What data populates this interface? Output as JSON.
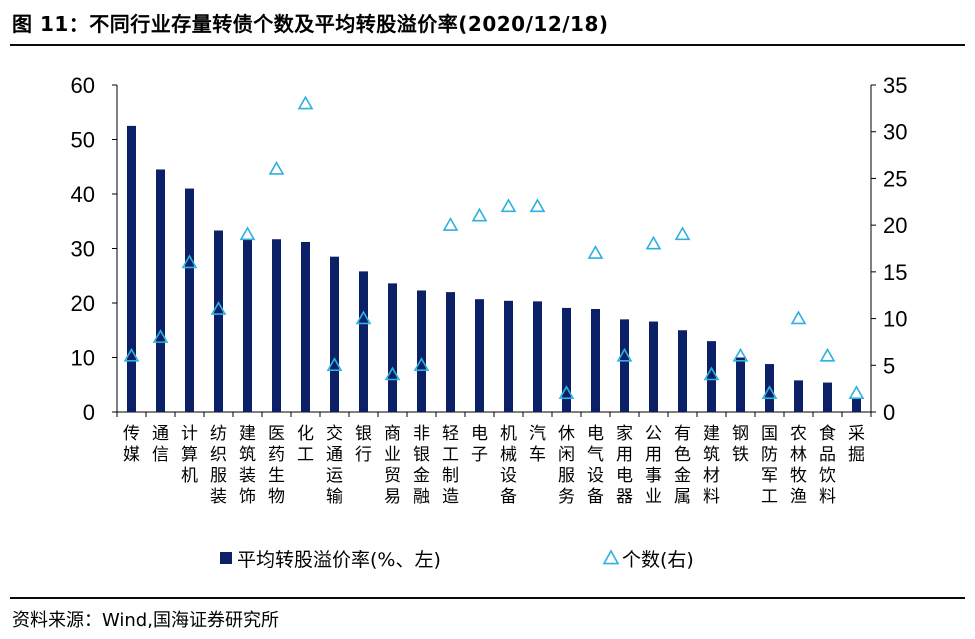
{
  "header": {
    "title": "图 11：不同行业存量转债个数及平均转股溢价率(2020/12/18)"
  },
  "footer": {
    "source": "资料来源：Wind,国海证券研究所"
  },
  "chart_data": {
    "type": "bar+scatter",
    "categories": [
      "传媒",
      "通信",
      "计算机",
      "纺织服装",
      "建筑装饰",
      "医药生物",
      "化工",
      "交通运输",
      "银行",
      "商业贸易",
      "非银金融",
      "轻工制造",
      "电子",
      "机械设备",
      "汽车",
      "休闲服务",
      "电气设备",
      "家用电器",
      "公用事业",
      "有色金属",
      "建筑材料",
      "钢铁",
      "国防军工",
      "农林牧渔",
      "食品饮料",
      "采掘"
    ],
    "series": [
      {
        "name": "平均转股溢价率(%、左)",
        "type": "bar",
        "axis": "left",
        "color": "#0b2066",
        "values": [
          52.5,
          44.5,
          41,
          33.3,
          31.8,
          31.7,
          31.2,
          28.5,
          25.8,
          23.6,
          22.3,
          22,
          20.7,
          20.4,
          20.3,
          19.1,
          18.9,
          17,
          16.6,
          15,
          13,
          10,
          8.8,
          5.8,
          5.4,
          2.5
        ]
      },
      {
        "name": "个数(右)",
        "type": "scatter",
        "marker": "triangle-open",
        "axis": "right",
        "color": "#2eb0e0",
        "values": [
          6,
          8,
          16,
          11,
          19,
          26,
          33,
          5,
          10,
          4,
          5,
          20,
          21,
          22,
          22,
          2,
          17,
          6,
          18,
          19,
          4,
          6,
          2,
          10,
          6,
          2
        ]
      }
    ],
    "y_left": {
      "lim": [
        0,
        60
      ],
      "ticks": [
        0,
        10,
        20,
        30,
        40,
        50,
        60
      ]
    },
    "y_right": {
      "lim": [
        0,
        35
      ],
      "ticks": [
        0,
        5,
        10,
        15,
        20,
        25,
        30,
        35
      ]
    },
    "legend_placement": "bottom",
    "grid": false
  }
}
